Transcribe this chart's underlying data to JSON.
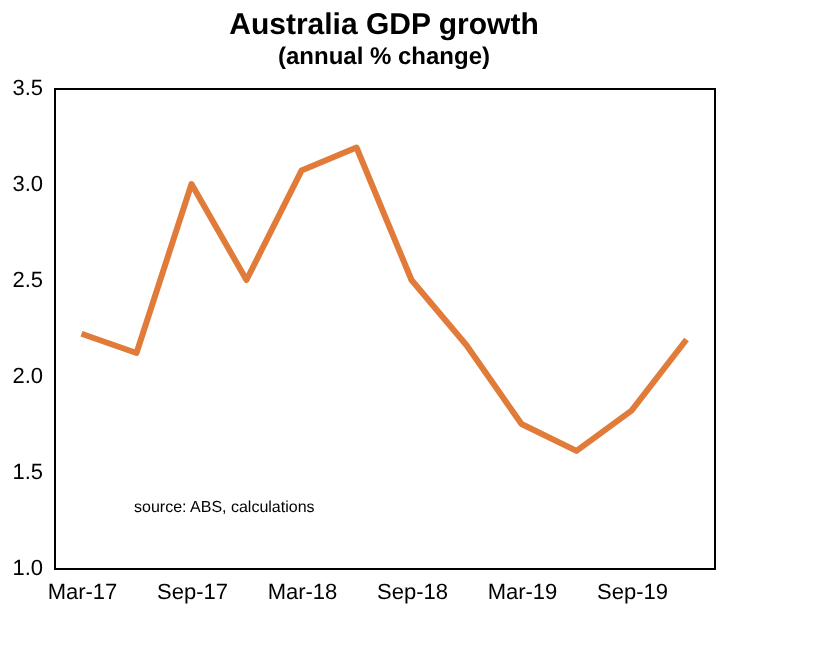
{
  "chart_data": {
    "type": "line",
    "title": "Australia GDP growth",
    "subtitle": "(annual % change)",
    "categories": [
      "Mar-17",
      null,
      "Sep-17",
      null,
      "Mar-18",
      null,
      "Sep-18",
      null,
      "Mar-19",
      null,
      "Sep-19",
      null
    ],
    "series": [
      {
        "color": "#e07b39",
        "values": [
          2.22,
          2.12,
          3.0,
          2.5,
          3.07,
          3.19,
          2.5,
          2.16,
          1.75,
          1.61,
          1.82,
          2.19
        ]
      }
    ],
    "ylim": [
      1,
      3.5
    ],
    "yticks": [
      {
        "value": 1,
        "label": "1.0"
      },
      1.5,
      {
        "value": 2,
        "label": "2.0"
      },
      2.5,
      {
        "value": 3,
        "label": "3.0"
      },
      3.5
    ],
    "annotations": [
      "source:  ABS, calculations"
    ],
    "grid": false,
    "marker": "none",
    "line_style": "solid"
  }
}
